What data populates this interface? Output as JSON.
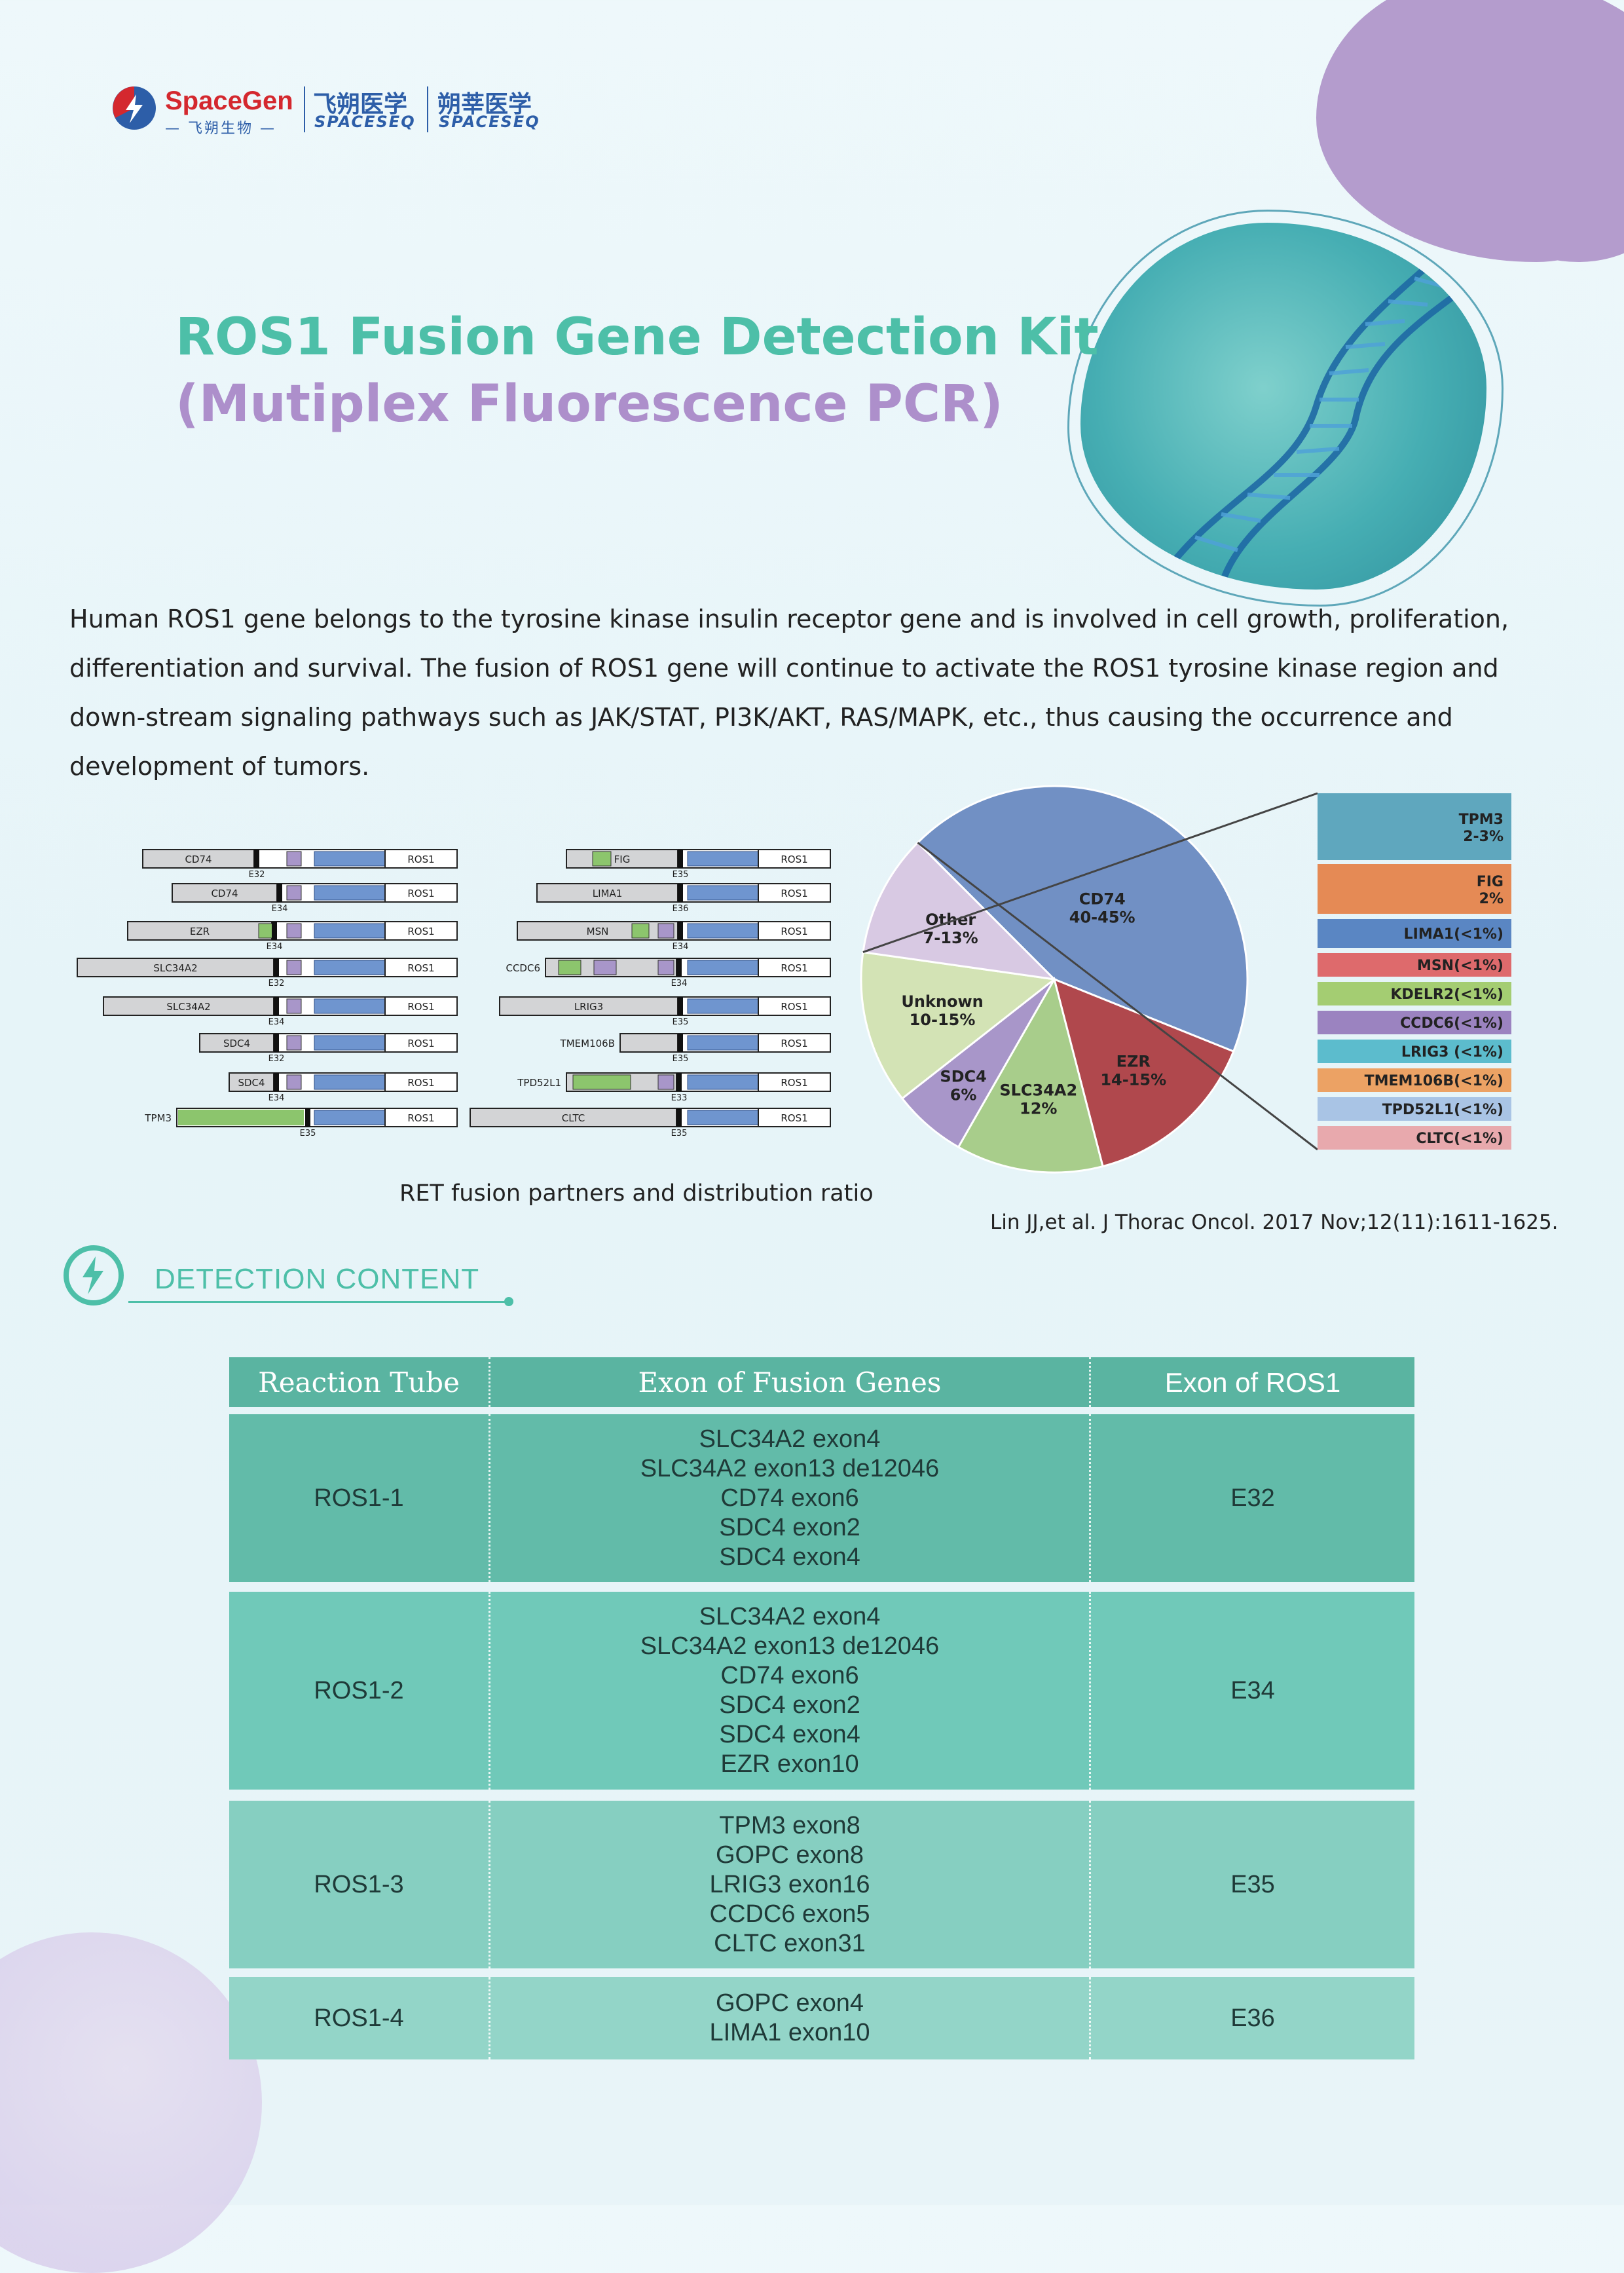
{
  "logo": {
    "brand_en": "SpaceGen",
    "brand_cn": "— 飞朔生物 —",
    "sub1_cn": "飞朔医学",
    "sub1_en": "SPACESEQ",
    "sub2_cn": "朔莘医学",
    "sub2_en": "SPACESEQ"
  },
  "title": {
    "line1": "ROS1 Fusion Gene Detection Kit",
    "line2": "(Mutiplex Fluorescence PCR)"
  },
  "intro": "Human ROS1 gene belongs to the tyrosine kinase insulin receptor gene and is involved in cell growth, proliferation, differentiation and survival. The fusion of ROS1 gene will continue to activate the ROS1 tyrosine kinase region and down-stream signaling pathways such as JAK/STAT, PI3K/AKT, RAS/MAPK, etc., thus causing the occurrence and development of tumors.",
  "fusions_left": [
    {
      "partner": "CD74",
      "exon": "E32",
      "ros": "ROS1"
    },
    {
      "partner": "CD74",
      "exon": "E34",
      "ros": "ROS1"
    },
    {
      "partner": "EZR",
      "exon": "E34",
      "ros": "ROS1"
    },
    {
      "partner": "SLC34A2",
      "exon": "E32",
      "ros": "ROS1"
    },
    {
      "partner": "SLC34A2",
      "exon": "E34",
      "ros": "ROS1"
    },
    {
      "partner": "SDC4",
      "exon": "E32",
      "ros": "ROS1"
    },
    {
      "partner": "SDC4",
      "exon": "E34",
      "ros": "ROS1"
    },
    {
      "partner": "TPM3",
      "exon": "E35",
      "ros": "ROS1"
    }
  ],
  "fusions_right": [
    {
      "partner": "FIG",
      "exon": "E35",
      "ros": "ROS1"
    },
    {
      "partner": "LIMA1",
      "exon": "E36",
      "ros": "ROS1"
    },
    {
      "partner": "MSN",
      "exon": "E34",
      "ros": "ROS1"
    },
    {
      "partner": "CCDC6",
      "exon": "E34",
      "ros": "ROS1"
    },
    {
      "partner": "LRIG3",
      "exon": "E35",
      "ros": "ROS1"
    },
    {
      "partner": "TMEM106B",
      "exon": "E35",
      "ros": "ROS1"
    },
    {
      "partner": "TPD52L1",
      "exon": "E33",
      "ros": "ROS1"
    },
    {
      "partner": "CLTC",
      "exon": "E35",
      "ros": "ROS1"
    }
  ],
  "caption": "RET fusion partners and distribution ratio",
  "reference": "Lin JJ,et al. J Thorac Oncol. 2017 Nov;12(11):1611-1625.",
  "chart_data": {
    "type": "pie",
    "slices": [
      {
        "label": "CD74",
        "value_text": "40-45%",
        "value": 42.5,
        "color": "#7190c4"
      },
      {
        "label": "EZR",
        "value_text": "14-15%",
        "value": 14.5,
        "color": "#b0484d"
      },
      {
        "label": "SLC34A2",
        "value_text": "12%",
        "value": 12,
        "color": "#a8cd8b"
      },
      {
        "label": "SDC4",
        "value_text": "6%",
        "value": 6,
        "color": "#a896c9"
      },
      {
        "label": "Unknown",
        "value_text": "10-15%",
        "value": 12.5,
        "color": "#d3e3b5"
      },
      {
        "label": "Other",
        "value_text": "7-13%",
        "value": 10,
        "color": "#d8c9e3"
      }
    ],
    "other_breakdown": [
      {
        "label": "TPM3",
        "value_text": "2-3%",
        "color": "#5fa7be"
      },
      {
        "label": "FIG",
        "value_text": "2%",
        "color": "#e58a55"
      },
      {
        "label": "LIMA1",
        "value_text": "(<1%)",
        "color": "#5a86c3"
      },
      {
        "label": "MSN",
        "value_text": "(<1%)",
        "color": "#de6a6c"
      },
      {
        "label": "KDELR2",
        "value_text": "(<1%)",
        "color": "#a4cd72"
      },
      {
        "label": "CCDC6",
        "value_text": "(<1%)",
        "color": "#9b83c0"
      },
      {
        "label": "LRIG3",
        "value_text": " (<1%)",
        "color": "#5cbccd"
      },
      {
        "label": "TMEM106B",
        "value_text": "(<1%)",
        "color": "#eca264"
      },
      {
        "label": "TPD52L1",
        "value_text": "(<1%)",
        "color": "#a9c4e5"
      },
      {
        "label": "CLTC",
        "value_text": "(<1%)",
        "color": "#e8a9ad"
      }
    ]
  },
  "section": {
    "title": "DETECTION CONTENT"
  },
  "table": {
    "headers": [
      "Reaction Tube",
      "Exon of Fusion Genes",
      "Exon of ROS1"
    ],
    "rows": [
      {
        "tube": "ROS1-1",
        "genes": [
          "SLC34A2 exon4",
          "SLC34A2 exon13 de12046",
          "CD74 exon6",
          "SDC4 exon2",
          "SDC4 exon4"
        ],
        "exon": "E32"
      },
      {
        "tube": "ROS1-2",
        "genes": [
          "SLC34A2 exon4",
          "SLC34A2 exon13 de12046",
          "CD74 exon6",
          "SDC4 exon2",
          "SDC4 exon4",
          "EZR exon10"
        ],
        "exon": "E34"
      },
      {
        "tube": "ROS1-3",
        "genes": [
          "TPM3 exon8",
          "GOPC exon8",
          "LRIG3 exon16",
          "CCDC6 exon5",
          "CLTC exon31"
        ],
        "exon": "E35"
      },
      {
        "tube": "ROS1-4",
        "genes": [
          "GOPC exon4",
          "LIMA1 exon10"
        ],
        "exon": "E36"
      }
    ]
  },
  "colors": {
    "teal": "#4dbfa8",
    "purple": "#ad8fcb",
    "header_bg": "#5ab4a1",
    "row1_bg": "#62bba9",
    "row2_bg": "#70c9b9",
    "row3_bg": "#86cfc1",
    "row4_bg": "#93d5c8"
  }
}
